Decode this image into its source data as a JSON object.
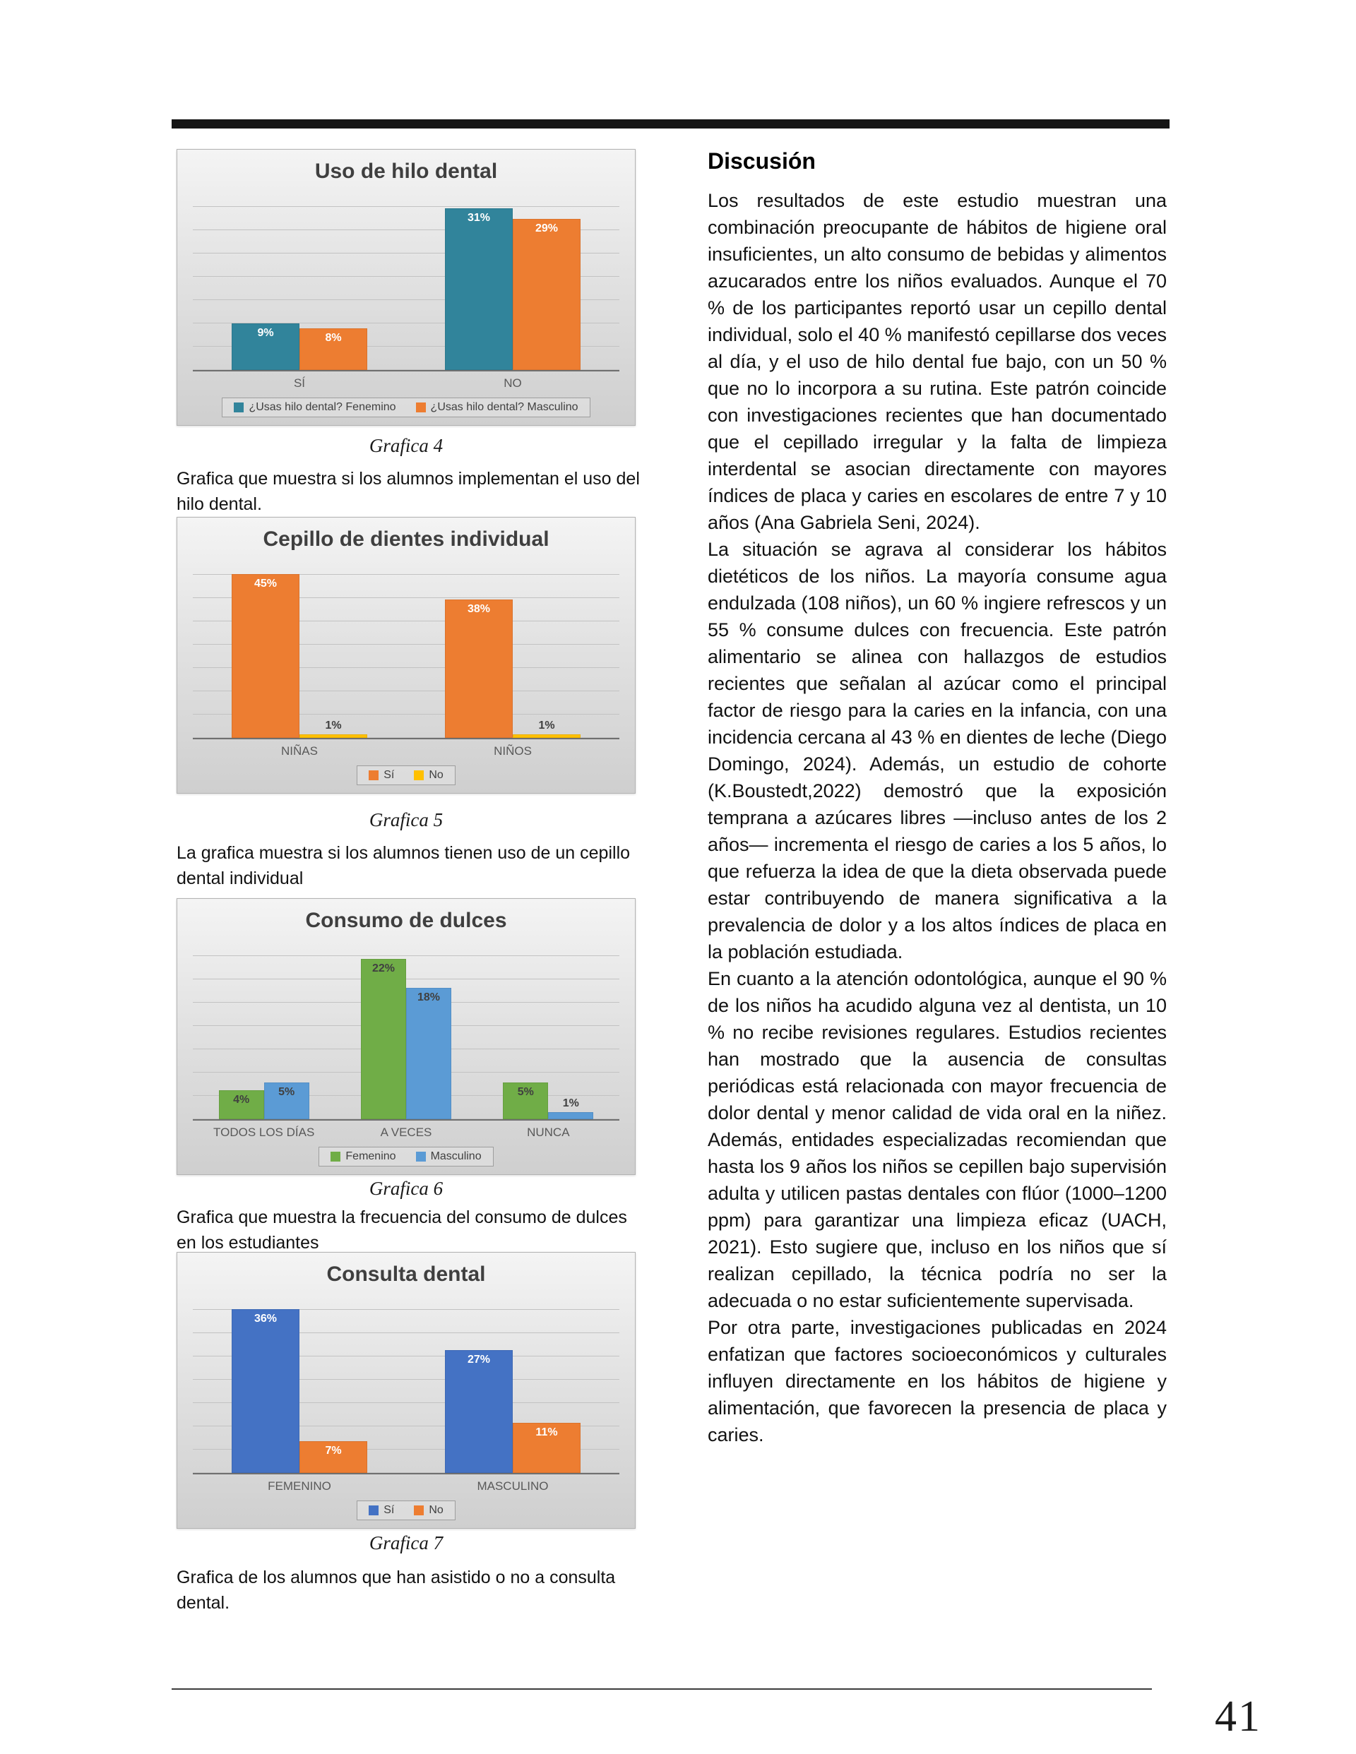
{
  "page": {
    "number": "41"
  },
  "discussion": {
    "title": "Discusión",
    "paragraphs": [
      "Los resultados de este estudio muestran una combinación preocupante de hábitos de higiene oral insuficientes, un alto consumo de bebidas y alimentos azucarados entre los niños evaluados. Aunque el 70 % de los participantes reportó usar un cepillo dental individual, solo el 40 % manifestó cepillarse dos veces al día, y el uso de hilo dental fue bajo, con un 50 % que no lo incorpora a su rutina. Este patrón coincide con investigaciones recientes que han documentado que el cepillado irregular y la falta de limpieza interdental se asocian directamente con mayores índices de placa y caries en escolares de entre 7 y 10 años (Ana Gabriela Seni, 2024).",
      "La situación se agrava al considerar los hábitos dietéticos de los niños. La mayoría consume agua endulzada (108 niños), un 60 % ingiere refrescos y un 55 % consume dulces con frecuencia. Este patrón alimentario se alinea con hallazgos de estudios recientes que señalan al azúcar como el principal factor de riesgo para la caries en la infancia, con una incidencia cercana al 43 % en dientes de leche (Diego Domingo, 2024). Además, un estudio de cohorte (K.Boustedt,2022) demostró que la exposición temprana a azúcares libres —incluso antes de los 2 años— incrementa el riesgo de caries a los 5 años, lo que refuerza la idea de que la dieta observada puede estar contribuyendo de manera significativa a la prevalencia de dolor y a los altos índices de placa en la población estudiada.",
      "En cuanto a la atención odontológica, aunque el 90 % de los niños ha acudido alguna vez al dentista, un 10 % no recibe revisiones regulares. Estudios recientes han mostrado que la ausencia de consultas periódicas está relacionada con mayor frecuencia de dolor dental y menor calidad de vida oral en la niñez. Además, entidades especializadas recomiendan que hasta los 9 años los niños se cepillen bajo supervisión adulta y utilicen pastas dentales con flúor (1000–1200 ppm) para garantizar una limpieza eficaz (UACH, 2021). Esto sugiere que, incluso en los niños que sí realizan cepillado, la técnica podría no ser la adecuada o no estar suficientemente supervisada.",
      "Por otra parte, investigaciones publicadas en 2024 enfatizan que factores socioeconómicos y culturales influyen directamente en los hábitos de higiene y alimentación, que favorecen la presencia de placa y caries."
    ]
  },
  "figures": [
    {
      "caption": "Grafica 4",
      "description": "Grafica que muestra si los alumnos implementan el uso del hilo dental."
    },
    {
      "caption": "Grafica 5",
      "description": "La grafica muestra si los alumnos tienen uso de un cepillo dental individual"
    },
    {
      "caption": "Grafica 6",
      "description": "Grafica que muestra la frecuencia del consumo de dulces en los estudiantes"
    },
    {
      "caption": "Grafica 7",
      "description": "Grafica de los alumnos que han asistido o no a consulta dental."
    }
  ],
  "chart_data": [
    {
      "type": "bar",
      "title": "Uso de hilo dental",
      "categories": [
        "SÍ",
        "NO"
      ],
      "series": [
        {
          "name": "¿Usas hilo dental? Fenemino",
          "color": "#31849b",
          "values": [
            9,
            31
          ]
        },
        {
          "name": "¿Usas hilo dental? Masculino",
          "color": "#ed7d31",
          "values": [
            8,
            29
          ]
        }
      ],
      "value_suffix": "%",
      "ylim": [
        0,
        35
      ],
      "label_style": "light",
      "legend_position": "bottom",
      "grid": true
    },
    {
      "type": "bar",
      "title": "Cepillo de dientes individual",
      "categories": [
        "NIÑAS",
        "NIÑOS"
      ],
      "series": [
        {
          "name": "Sí",
          "color": "#ed7d31",
          "values": [
            45,
            38
          ]
        },
        {
          "name": "No",
          "color": "#ffc000",
          "values": [
            1,
            1
          ]
        }
      ],
      "value_suffix": "%",
      "ylim": [
        0,
        50
      ],
      "label_style": "light",
      "legend_position": "bottom",
      "grid": true
    },
    {
      "type": "bar",
      "title": "Consumo de dulces",
      "categories": [
        "TODOS LOS DÍAS",
        "A VECES",
        "NUNCA"
      ],
      "series": [
        {
          "name": "Femenino",
          "color": "#70ad47",
          "values": [
            4,
            22,
            5
          ]
        },
        {
          "name": "Masculino",
          "color": "#5b9bd5",
          "values": [
            5,
            18,
            1
          ]
        }
      ],
      "value_suffix": "%",
      "ylim": [
        0,
        25
      ],
      "label_style": "dark",
      "legend_position": "bottom",
      "grid": true
    },
    {
      "type": "bar",
      "title": "Consulta dental",
      "categories": [
        "FEMENINO",
        "MASCULINO"
      ],
      "series": [
        {
          "name": "Sí",
          "color": "#4472c4",
          "values": [
            36,
            27
          ]
        },
        {
          "name": "No",
          "color": "#ed7d31",
          "values": [
            7,
            11
          ]
        }
      ],
      "value_suffix": "%",
      "ylim": [
        0,
        40
      ],
      "label_style": "light",
      "legend_position": "bottom",
      "grid": true
    }
  ]
}
